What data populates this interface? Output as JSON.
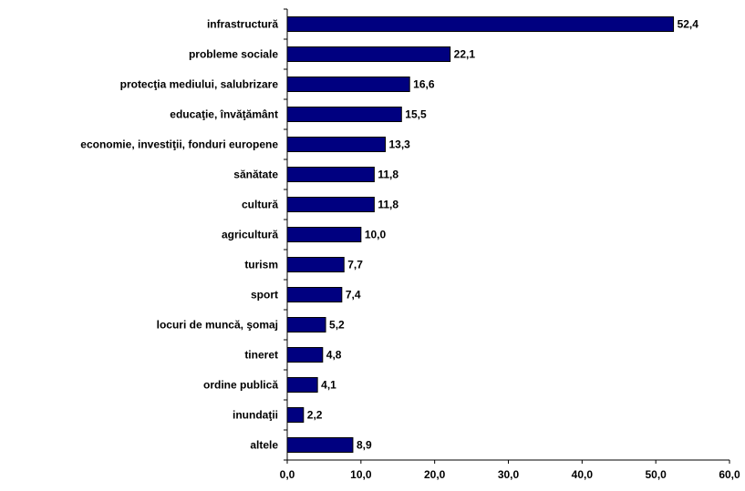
{
  "chart_data": {
    "type": "bar",
    "orientation": "horizontal",
    "categories": [
      "infrastructură",
      "probleme sociale",
      "protecţia mediului, salubrizare",
      "educaţie, învăţământ",
      "economie, investiţii, fonduri europene",
      "sănătate",
      "cultură",
      "agricultură",
      "turism",
      "sport",
      "locuri de muncă, şomaj",
      "tineret",
      "ordine publică",
      "inundaţii",
      "altele"
    ],
    "values": [
      52.4,
      22.1,
      16.6,
      15.5,
      13.3,
      11.8,
      11.8,
      10.0,
      7.7,
      7.4,
      5.2,
      4.8,
      4.1,
      2.2,
      8.9
    ],
    "value_labels": [
      "52,4",
      "22,1",
      "16,6",
      "15,5",
      "13,3",
      "11,8",
      "11,8",
      "10,0",
      "7,7",
      "7,4",
      "5,2",
      "4,8",
      "4,1",
      "2,2",
      "8,9"
    ],
    "color": "#000080",
    "xlim": [
      0,
      60
    ],
    "xticks": [
      {
        "value": 0,
        "label": "0,0"
      },
      {
        "value": 10,
        "label": "10,0"
      },
      {
        "value": 20,
        "label": "20,0"
      },
      {
        "value": 30,
        "label": "30,0"
      },
      {
        "value": 40,
        "label": "40,0"
      },
      {
        "value": 50,
        "label": "50,0"
      },
      {
        "value": 60,
        "label": "60,0"
      }
    ],
    "grid": false
  }
}
